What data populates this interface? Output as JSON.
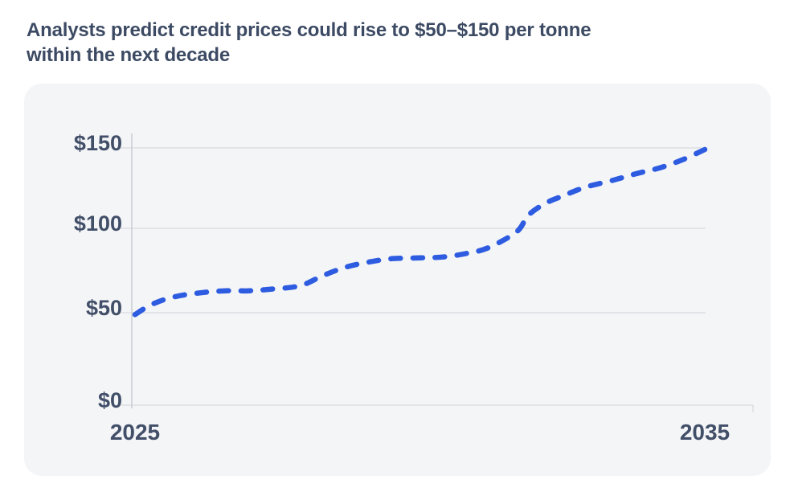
{
  "page": {
    "title_line1": "Analysts predict credit prices could rise to $50–$150 per tonne",
    "title_line2": "within the next decade"
  },
  "colors": {
    "page_background": "#ffffff",
    "card_background": "#f4f5f7",
    "title_text": "#3c4a63",
    "axis_text": "#424f68",
    "line": "#2e5ce0",
    "gridline": "#d7dade",
    "axis_line": "#c8ccd3"
  },
  "chart_data": {
    "type": "line",
    "title": "Analysts predict credit prices could rise to $50–$150 per tonne within the next decade",
    "line_style": "dashed",
    "grid": "horizontal",
    "legend": false,
    "xlabel": "",
    "ylabel": "",
    "xlim": [
      2025,
      2035
    ],
    "ylim": [
      0,
      150
    ],
    "xticks": [
      {
        "label": "2025",
        "value": 2025
      },
      {
        "label": "2035",
        "value": 2035
      }
    ],
    "yticks": [
      {
        "label": "$0",
        "value": 0
      },
      {
        "label": "$50",
        "value": 50
      },
      {
        "label": "$100",
        "value": 100
      },
      {
        "label": "$150",
        "value": 150
      }
    ],
    "series": [
      {
        "x": [
          2025,
          2025.3,
          2025.7,
          2026.2,
          2026.6,
          2027,
          2027.4,
          2027.9,
          2028.3,
          2028.7,
          2029.1,
          2029.5,
          2030,
          2030.4,
          2030.8,
          2031.2,
          2031.7,
          2031.9,
          2032.2,
          2032.5,
          2032.9,
          2033.4,
          2033.8,
          2034.2,
          2034.6,
          2035
        ],
        "y": [
          49,
          55,
          59.5,
          62,
          63,
          63,
          64,
          66,
          72,
          77,
          80,
          82,
          82.5,
          83,
          85,
          88.5,
          98,
          108,
          115.5,
          120,
          125.5,
          130,
          134,
          137.5,
          142.5,
          149
        ]
      }
    ]
  }
}
